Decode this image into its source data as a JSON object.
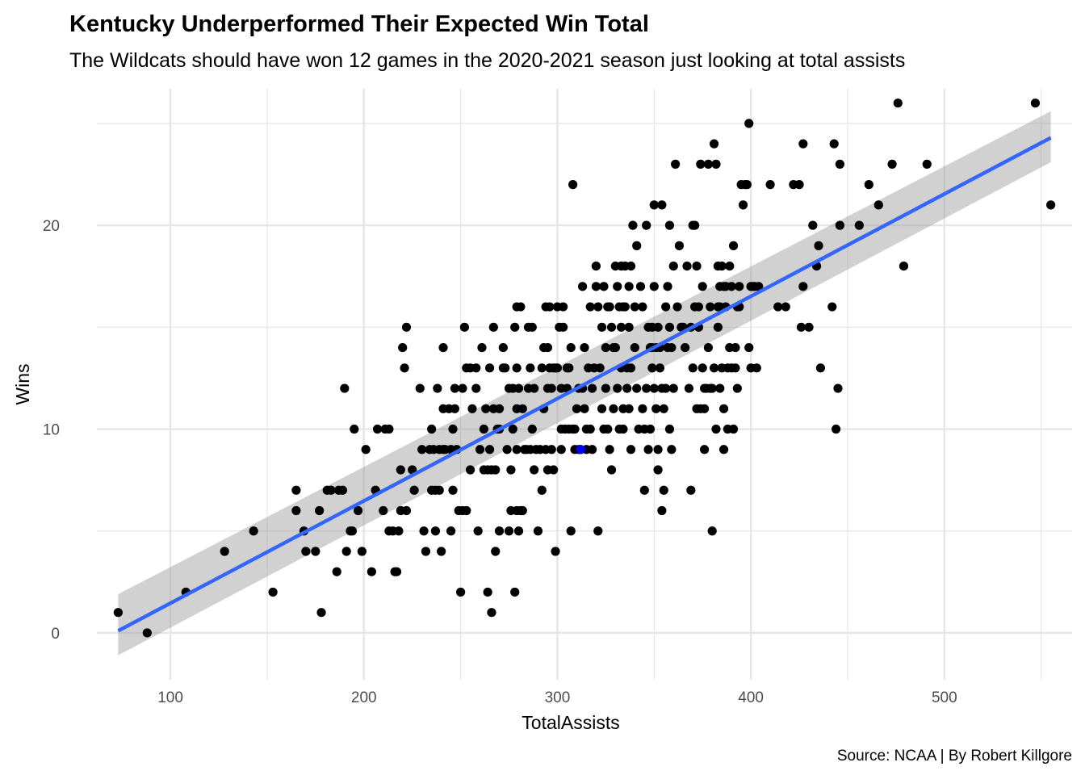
{
  "title": "Kentucky Underperformed Their Expected Win Total",
  "subtitle": "The Wildcats should have won 12 games in the 2020-2021 season just looking at total assists",
  "caption": "Source: NCAA | By Robert Killgore",
  "colors": {
    "point": "#000000",
    "highlight": "#0000ff",
    "fit_line": "#3366ff",
    "confidence_band": "#999999",
    "grid": "#e6e6e6"
  },
  "chart_data": {
    "type": "scatter",
    "title": "Kentucky Underperformed Their Expected Win Total",
    "subtitle": "The Wildcats should have won 12 games in the 2020-2021 season just looking at total assists",
    "xlabel": "TotalAssists",
    "ylabel": "Wins",
    "xlim": [
      62,
      566
    ],
    "ylim": [
      -2.3,
      26.7
    ],
    "x_ticks": [
      100,
      200,
      300,
      400,
      500
    ],
    "y_ticks": [
      0,
      10,
      20
    ],
    "grid": true,
    "legend": "none",
    "highlight_point": {
      "x": 312,
      "y": 9
    },
    "fit_line": {
      "x": [
        73,
        555
      ],
      "y": [
        0.1,
        24.3
      ],
      "ci_upper": [
        1.9,
        25.6
      ],
      "ci_lower": [
        -1.1,
        23.1
      ]
    },
    "points": [
      [
        73,
        1
      ],
      [
        88,
        0
      ],
      [
        108,
        2
      ],
      [
        128,
        4
      ],
      [
        143,
        5
      ],
      [
        153,
        2
      ],
      [
        165,
        7
      ],
      [
        165,
        6
      ],
      [
        169,
        5
      ],
      [
        170,
        4
      ],
      [
        175,
        4
      ],
      [
        177,
        6
      ],
      [
        178,
        1
      ],
      [
        181,
        7
      ],
      [
        183,
        7
      ],
      [
        186,
        3
      ],
      [
        187,
        7
      ],
      [
        189,
        7
      ],
      [
        190,
        12
      ],
      [
        191,
        4
      ],
      [
        193,
        5
      ],
      [
        194,
        5
      ],
      [
        195,
        10
      ],
      [
        197,
        6
      ],
      [
        199,
        4
      ],
      [
        201,
        9
      ],
      [
        204,
        3
      ],
      [
        206,
        7
      ],
      [
        207,
        10
      ],
      [
        210,
        6
      ],
      [
        211,
        10
      ],
      [
        213,
        10
      ],
      [
        213,
        5
      ],
      [
        215,
        5
      ],
      [
        216,
        3
      ],
      [
        217,
        3
      ],
      [
        218,
        5
      ],
      [
        219,
        8
      ],
      [
        219,
        6
      ],
      [
        220,
        14
      ],
      [
        221,
        13
      ],
      [
        222,
        15
      ],
      [
        222,
        6
      ],
      [
        225,
        8
      ],
      [
        226,
        7
      ],
      [
        229,
        12
      ],
      [
        230,
        9
      ],
      [
        231,
        5
      ],
      [
        232,
        4
      ],
      [
        234,
        9
      ],
      [
        235,
        10
      ],
      [
        235,
        7
      ],
      [
        236,
        9
      ],
      [
        237,
        7
      ],
      [
        237,
        5
      ],
      [
        238,
        12
      ],
      [
        239,
        9
      ],
      [
        239,
        7
      ],
      [
        240,
        4
      ],
      [
        241,
        14
      ],
      [
        241,
        9
      ],
      [
        241,
        11
      ],
      [
        242,
        9
      ],
      [
        244,
        11
      ],
      [
        245,
        9
      ],
      [
        245,
        5
      ],
      [
        246,
        7
      ],
      [
        246,
        10
      ],
      [
        247,
        12
      ],
      [
        247,
        11
      ],
      [
        248,
        9
      ],
      [
        249,
        6
      ],
      [
        250,
        2
      ],
      [
        251,
        6
      ],
      [
        251,
        12
      ],
      [
        252,
        15
      ],
      [
        253,
        13
      ],
      [
        253,
        6
      ],
      [
        255,
        8
      ],
      [
        255,
        13
      ],
      [
        256,
        11
      ],
      [
        258,
        12
      ],
      [
        258,
        13
      ],
      [
        259,
        5
      ],
      [
        260,
        9
      ],
      [
        261,
        14
      ],
      [
        262,
        10
      ],
      [
        262,
        8
      ],
      [
        263,
        11
      ],
      [
        264,
        8
      ],
      [
        264,
        2
      ],
      [
        265,
        13
      ],
      [
        265,
        9
      ],
      [
        266,
        1
      ],
      [
        266,
        8
      ],
      [
        267,
        15
      ],
      [
        267,
        11
      ],
      [
        268,
        4
      ],
      [
        268,
        8
      ],
      [
        269,
        10
      ],
      [
        270,
        11
      ],
      [
        270,
        10
      ],
      [
        270,
        5
      ],
      [
        272,
        14
      ],
      [
        272,
        13
      ],
      [
        273,
        13
      ],
      [
        274,
        9
      ],
      [
        275,
        5
      ],
      [
        275,
        12
      ],
      [
        276,
        8
      ],
      [
        276,
        6
      ],
      [
        277,
        12
      ],
      [
        277,
        10
      ],
      [
        278,
        2
      ],
      [
        278,
        15
      ],
      [
        279,
        11
      ],
      [
        279,
        16
      ],
      [
        279,
        13
      ],
      [
        279,
        9
      ],
      [
        279,
        6
      ],
      [
        280,
        12
      ],
      [
        280,
        5
      ],
      [
        281,
        6
      ],
      [
        281,
        16
      ],
      [
        282,
        11
      ],
      [
        282,
        6
      ],
      [
        283,
        9
      ],
      [
        284,
        9
      ],
      [
        285,
        12
      ],
      [
        285,
        15
      ],
      [
        286,
        9
      ],
      [
        286,
        13
      ],
      [
        287,
        15
      ],
      [
        287,
        10
      ],
      [
        288,
        12
      ],
      [
        288,
        8
      ],
      [
        289,
        9
      ],
      [
        290,
        5
      ],
      [
        291,
        9
      ],
      [
        292,
        13
      ],
      [
        292,
        7
      ],
      [
        293,
        14
      ],
      [
        293,
        11
      ],
      [
        294,
        9
      ],
      [
        294,
        16
      ],
      [
        295,
        12
      ],
      [
        295,
        14
      ],
      [
        295,
        8
      ],
      [
        296,
        16
      ],
      [
        296,
        13
      ],
      [
        297,
        9
      ],
      [
        297,
        12
      ],
      [
        298,
        13
      ],
      [
        298,
        8
      ],
      [
        299,
        4
      ],
      [
        299,
        13
      ],
      [
        300,
        16
      ],
      [
        300,
        13
      ],
      [
        301,
        15
      ],
      [
        302,
        10
      ],
      [
        302,
        12
      ],
      [
        302,
        9
      ],
      [
        303,
        15
      ],
      [
        303,
        16
      ],
      [
        304,
        10
      ],
      [
        305,
        12
      ],
      [
        305,
        13
      ],
      [
        306,
        10
      ],
      [
        306,
        13
      ],
      [
        307,
        5
      ],
      [
        307,
        14
      ],
      [
        308,
        22
      ],
      [
        308,
        10
      ],
      [
        309,
        10
      ],
      [
        309,
        9
      ],
      [
        310,
        11
      ],
      [
        311,
        12
      ],
      [
        311,
        9
      ],
      [
        312,
        9
      ],
      [
        313,
        12
      ],
      [
        313,
        17
      ],
      [
        314,
        14
      ],
      [
        314,
        11
      ],
      [
        315,
        10
      ],
      [
        315,
        9
      ],
      [
        316,
        13
      ],
      [
        317,
        10
      ],
      [
        317,
        16
      ],
      [
        318,
        9
      ],
      [
        318,
        12
      ],
      [
        319,
        13
      ],
      [
        320,
        18
      ],
      [
        320,
        17
      ],
      [
        321,
        5
      ],
      [
        321,
        16
      ],
      [
        322,
        13
      ],
      [
        323,
        11
      ],
      [
        323,
        15
      ],
      [
        324,
        10
      ],
      [
        324,
        17
      ],
      [
        325,
        14
      ],
      [
        325,
        12
      ],
      [
        326,
        10
      ],
      [
        326,
        16
      ],
      [
        327,
        16
      ],
      [
        327,
        9
      ],
      [
        328,
        8
      ],
      [
        328,
        15
      ],
      [
        329,
        14
      ],
      [
        329,
        11
      ],
      [
        330,
        18
      ],
      [
        330,
        14
      ],
      [
        331,
        12
      ],
      [
        331,
        17
      ],
      [
        332,
        16
      ],
      [
        332,
        10
      ],
      [
        333,
        13
      ],
      [
        333,
        15
      ],
      [
        333,
        18
      ],
      [
        334,
        10
      ],
      [
        334,
        11
      ],
      [
        334,
        16
      ],
      [
        335,
        18
      ],
      [
        335,
        16
      ],
      [
        336,
        13
      ],
      [
        336,
        12
      ],
      [
        337,
        15
      ],
      [
        337,
        11
      ],
      [
        337,
        17
      ],
      [
        338,
        9
      ],
      [
        338,
        18
      ],
      [
        338,
        13
      ],
      [
        339,
        20
      ],
      [
        340,
        16
      ],
      [
        340,
        14
      ],
      [
        341,
        12
      ],
      [
        341,
        19
      ],
      [
        342,
        10
      ],
      [
        343,
        17
      ],
      [
        344,
        16
      ],
      [
        344,
        11
      ],
      [
        345,
        10
      ],
      [
        345,
        7
      ],
      [
        346,
        20
      ],
      [
        346,
        12
      ],
      [
        347,
        15
      ],
      [
        347,
        9
      ],
      [
        348,
        14
      ],
      [
        348,
        10
      ],
      [
        349,
        15
      ],
      [
        349,
        14
      ],
      [
        349,
        13
      ],
      [
        350,
        21
      ],
      [
        350,
        12
      ],
      [
        350,
        17
      ],
      [
        351,
        11
      ],
      [
        351,
        14
      ],
      [
        352,
        15
      ],
      [
        352,
        8
      ],
      [
        352,
        9
      ],
      [
        353,
        14
      ],
      [
        353,
        13
      ],
      [
        354,
        21
      ],
      [
        354,
        6
      ],
      [
        354,
        12
      ],
      [
        355,
        7
      ],
      [
        355,
        11
      ],
      [
        356,
        16
      ],
      [
        356,
        12
      ],
      [
        357,
        17
      ],
      [
        357,
        14
      ],
      [
        358,
        10
      ],
      [
        358,
        15
      ],
      [
        358,
        20
      ],
      [
        359,
        14
      ],
      [
        359,
        9
      ],
      [
        360,
        12
      ],
      [
        360,
        18
      ],
      [
        361,
        23
      ],
      [
        362,
        16
      ],
      [
        363,
        19
      ],
      [
        364,
        15
      ],
      [
        365,
        15
      ],
      [
        366,
        14
      ],
      [
        367,
        18
      ],
      [
        368,
        12
      ],
      [
        369,
        7
      ],
      [
        369,
        15
      ],
      [
        370,
        20
      ],
      [
        370,
        13
      ],
      [
        371,
        16
      ],
      [
        371,
        20
      ],
      [
        372,
        11
      ],
      [
        372,
        18
      ],
      [
        373,
        16
      ],
      [
        373,
        15
      ],
      [
        374,
        23
      ],
      [
        374,
        11
      ],
      [
        375,
        13
      ],
      [
        375,
        17
      ],
      [
        376,
        12
      ],
      [
        376,
        11
      ],
      [
        376,
        9
      ],
      [
        377,
        12
      ],
      [
        378,
        23
      ],
      [
        378,
        14
      ],
      [
        379,
        16
      ],
      [
        379,
        12
      ],
      [
        380,
        12
      ],
      [
        380,
        5
      ],
      [
        381,
        24
      ],
      [
        381,
        13
      ],
      [
        382,
        23
      ],
      [
        382,
        10
      ],
      [
        383,
        16
      ],
      [
        383,
        15
      ],
      [
        383,
        18
      ],
      [
        384,
        12
      ],
      [
        384,
        17
      ],
      [
        384,
        16
      ],
      [
        385,
        18
      ],
      [
        385,
        13
      ],
      [
        386,
        11
      ],
      [
        386,
        17
      ],
      [
        386,
        9
      ],
      [
        387,
        16
      ],
      [
        387,
        17
      ],
      [
        388,
        13
      ],
      [
        388,
        10
      ],
      [
        389,
        14
      ],
      [
        389,
        18
      ],
      [
        390,
        13
      ],
      [
        390,
        17
      ],
      [
        391,
        10
      ],
      [
        391,
        19
      ],
      [
        392,
        13
      ],
      [
        392,
        14
      ],
      [
        393,
        12
      ],
      [
        393,
        16
      ],
      [
        394,
        16
      ],
      [
        394,
        17
      ],
      [
        395,
        22
      ],
      [
        396,
        21
      ],
      [
        397,
        22
      ],
      [
        398,
        22
      ],
      [
        399,
        25
      ],
      [
        399,
        14
      ],
      [
        400,
        17
      ],
      [
        400,
        13
      ],
      [
        401,
        17
      ],
      [
        402,
        17
      ],
      [
        403,
        13
      ],
      [
        404,
        17
      ],
      [
        410,
        22
      ],
      [
        414,
        16
      ],
      [
        418,
        16
      ],
      [
        422,
        22
      ],
      [
        425,
        22
      ],
      [
        426,
        15
      ],
      [
        427,
        24
      ],
      [
        427,
        17
      ],
      [
        430,
        15
      ],
      [
        432,
        20
      ],
      [
        434,
        18
      ],
      [
        435,
        19
      ],
      [
        436,
        13
      ],
      [
        442,
        16
      ],
      [
        443,
        24
      ],
      [
        444,
        10
      ],
      [
        445,
        12
      ],
      [
        446,
        23
      ],
      [
        446,
        20
      ],
      [
        456,
        20
      ],
      [
        461,
        22
      ],
      [
        466,
        21
      ],
      [
        473,
        23
      ],
      [
        476,
        26
      ],
      [
        479,
        18
      ],
      [
        491,
        23
      ],
      [
        547,
        26
      ],
      [
        555,
        21
      ]
    ]
  }
}
